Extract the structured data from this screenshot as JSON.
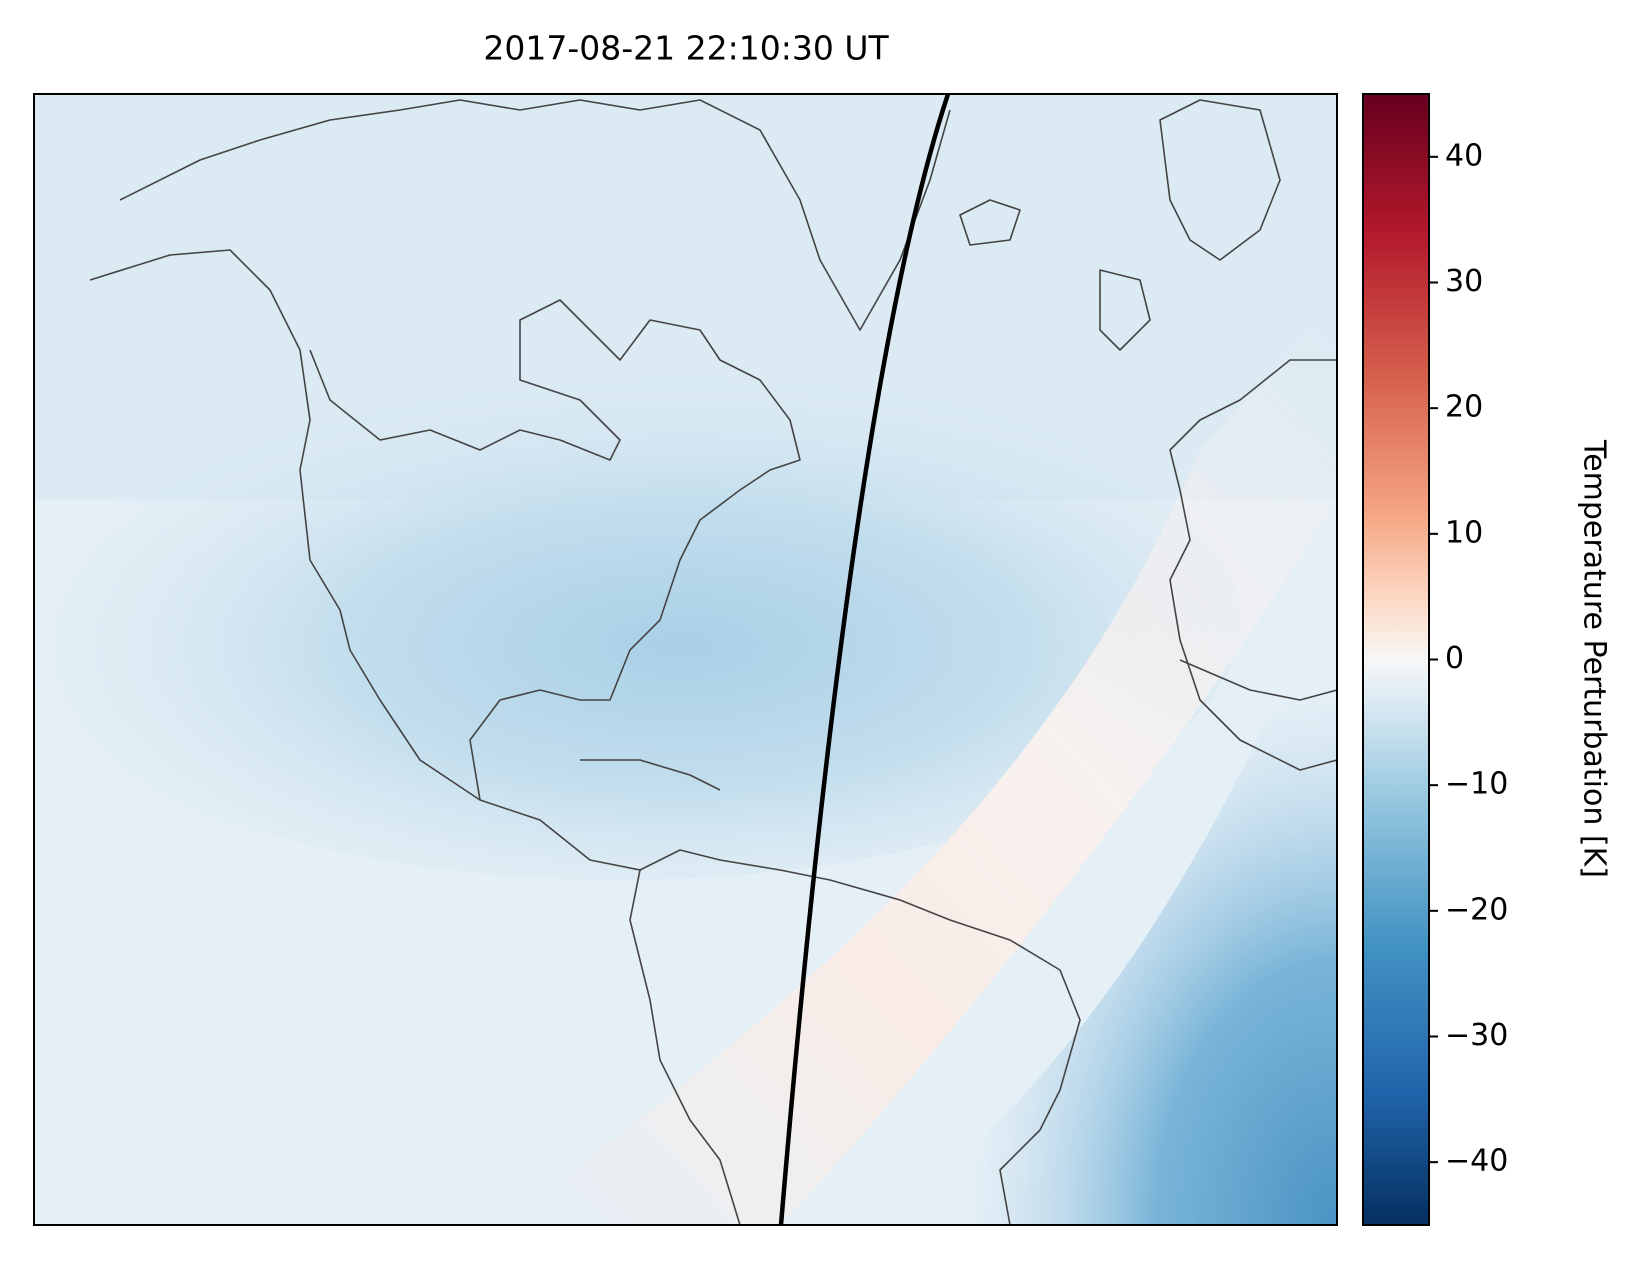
{
  "chart_data": {
    "type": "map",
    "title": "2017-08-21 22:10:30 UT",
    "colorbar": {
      "label": "Temperature Perturbation [K]",
      "lim": [
        -45,
        45
      ],
      "ticks": [
        {
          "value": -40,
          "label": "−40"
        },
        {
          "value": -30,
          "label": "−30"
        },
        {
          "value": -20,
          "label": "−20"
        },
        {
          "value": -10,
          "label": "−10"
        },
        0,
        10,
        20,
        30,
        40
      ]
    }
  }
}
